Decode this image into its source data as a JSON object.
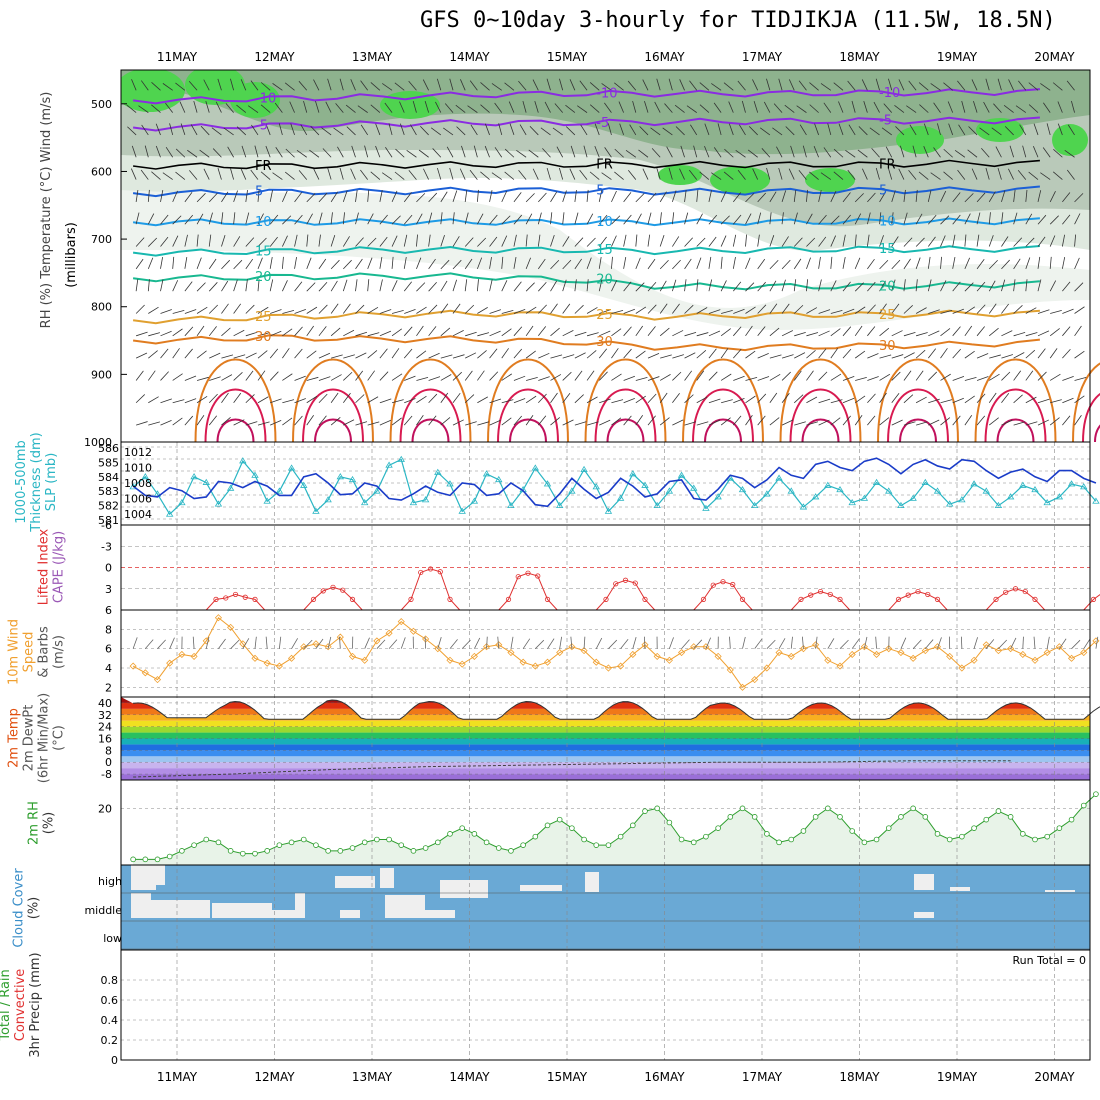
{
  "title": "GFS 0~10day 3-hourly for TIDJIKJA (11.5W, 18.5N)",
  "dates": [
    "11MAY",
    "12MAY",
    "13MAY",
    "14MAY",
    "15MAY",
    "16MAY",
    "17MAY",
    "18MAY",
    "19MAY",
    "20MAY"
  ],
  "colors": {
    "panel_bg": "#ffffff",
    "cloud_blue": "#6aa9d5",
    "rh_fill": "#e8f3e8",
    "rh_line": "#2e9e2e",
    "thick_line": "#2ab6c4",
    "slp_line": "#1a3cc8",
    "li_line": "#e03030",
    "wind_line": "#f0a030",
    "barb": "#666666"
  },
  "chart_data": [
    {
      "panel": "profile",
      "type": "heatmap",
      "ylabel_parts": [
        "RH (%)",
        "Temperature (°C)",
        "Wind (m/s)",
        "(millibars)"
      ],
      "y_ticks": [
        "500",
        "600",
        "700",
        "800",
        "900",
        "1000"
      ],
      "ylim": [
        1000,
        450
      ],
      "isotherms": [
        {
          "label": "-10",
          "pressure": [
            495,
            492,
            490,
            487,
            485,
            485,
            485,
            484,
            483,
            482
          ]
        },
        {
          "label": "-5",
          "pressure": [
            535,
            532,
            530,
            528,
            528,
            527,
            526,
            525,
            525,
            524
          ]
        },
        {
          "label": "FR",
          "pressure": [
            592,
            592,
            591,
            590,
            590,
            590,
            590,
            590,
            588,
            588
          ]
        },
        {
          "label": "5",
          "pressure": [
            632,
            630,
            630,
            628,
            628,
            630,
            630,
            628,
            628,
            626
          ]
        },
        {
          "label": "10",
          "pressure": [
            675,
            675,
            675,
            675,
            675,
            675,
            675,
            674,
            674,
            673
          ]
        },
        {
          "label": "15",
          "pressure": [
            720,
            718,
            716,
            716,
            716,
            718,
            716,
            715,
            715,
            714
          ]
        },
        {
          "label": "20",
          "pressure": [
            758,
            756,
            755,
            755,
            760,
            770,
            770,
            770,
            768,
            766
          ]
        },
        {
          "label": "25",
          "pressure": [
            820,
            815,
            812,
            810,
            812,
            815,
            812,
            812,
            810,
            810
          ]
        },
        {
          "label": "30",
          "pressure": [
            850,
            845,
            848,
            848,
            852,
            860,
            860,
            858,
            856,
            852
          ]
        }
      ]
    },
    {
      "panel": "thickness_slp",
      "type": "line",
      "ylabel_parts": [
        "1000-500mb",
        "Thickness (dm)",
        "SLP (mb)"
      ],
      "left_ticks": [
        "586",
        "585",
        "584",
        "583",
        "582",
        "581"
      ],
      "right_ticks": [
        "1012",
        "1010",
        "1008",
        "1006",
        "1004"
      ],
      "series": [
        {
          "name": "Thickness",
          "values": [
            583.3,
            584.0,
            582.8,
            581.4,
            582.2,
            584.0,
            583.6,
            582.1,
            583.2,
            585.1,
            584.1,
            582.3,
            583.0,
            584.6,
            583.4,
            581.6,
            582.4,
            584.0,
            583.8,
            582.2,
            583.0,
            584.8,
            585.2,
            582.2,
            582.4,
            584.3,
            583.5,
            581.6,
            582.3,
            584.2,
            583.8,
            582.0,
            583.1,
            584.6,
            583.5,
            582.0,
            583.0,
            584.5,
            583.3,
            581.6,
            582.5,
            584.2,
            583.4,
            582.0,
            583.0,
            584.1,
            583.2,
            581.8,
            582.6,
            583.9,
            583.1,
            582.0,
            582.8,
            583.9,
            583.0,
            581.9,
            582.6,
            583.4,
            583.1,
            582.2,
            582.5,
            583.6,
            583.0,
            582.0,
            582.5,
            583.6,
            583.0,
            582.1,
            582.4,
            583.5,
            583.0,
            582.0,
            582.6,
            583.4,
            583.1,
            582.2,
            582.6,
            583.5,
            583.3,
            582.3
          ],
          "unit": "dm"
        },
        {
          "name": "SLP",
          "values": [
            1007.6,
            1006.4,
            1006.2,
            1007.4,
            1007.0,
            1006.0,
            1006.2,
            1008.2,
            1008.0,
            1007.4,
            1008.2,
            1007.6,
            1006.4,
            1006.4,
            1008.8,
            1009.2,
            1008.0,
            1006.5,
            1006.6,
            1008.0,
            1007.6,
            1006.0,
            1005.8,
            1006.6,
            1007.6,
            1006.8,
            1006.4,
            1008.0,
            1007.8,
            1006.4,
            1006.6,
            1008.0,
            1007.0,
            1005.2,
            1005.0,
            1006.6,
            1008.6,
            1007.2,
            1006.0,
            1006.8,
            1008.6,
            1007.6,
            1006.2,
            1006.6,
            1008.2,
            1008.4,
            1006.0,
            1005.8,
            1007.2,
            1009.0,
            1008.6,
            1007.4,
            1008.4,
            1010.0,
            1009.0,
            1008.6,
            1010.4,
            1010.8,
            1010.0,
            1009.6,
            1010.8,
            1011.2,
            1010.4,
            1009.2,
            1010.4,
            1011.0,
            1010.2,
            1009.8,
            1011.0,
            1010.8,
            1009.6,
            1008.6,
            1009.4,
            1009.8,
            1008.8,
            1008.2,
            1009.6,
            1009.6,
            1008.6,
            1008.0
          ],
          "unit": "mb"
        }
      ]
    },
    {
      "panel": "stability",
      "type": "line",
      "ylabel_parts": [
        "Lifted Index",
        "CAPE (J/kg)"
      ],
      "y_ticks": [
        "-6",
        "-3",
        "0",
        "3",
        "6"
      ],
      "ylim": [
        -6,
        6
      ],
      "series": [
        {
          "name": "Lifted Index",
          "days": [
            {
              "peak": 3.8
            },
            {
              "peak": 2.8
            },
            {
              "peak": 0.2
            },
            {
              "peak": 0.8
            },
            {
              "peak": 1.8
            },
            {
              "peak": 2.0
            },
            {
              "peak": 3.4
            },
            {
              "peak": 3.4
            },
            {
              "peak": 3.0
            },
            {
              "peak": 3.0
            }
          ]
        }
      ]
    },
    {
      "panel": "wind10m",
      "type": "line",
      "ylabel_parts": [
        "10m Wind",
        "Speed",
        "& Barbs",
        "(m/s)"
      ],
      "y_ticks": [
        "2",
        "4",
        "6",
        "8"
      ],
      "ylim": [
        1,
        10
      ],
      "series": [
        {
          "name": "10m Wind Speed",
          "values": [
            4.2,
            3.5,
            2.8,
            4.5,
            5.4,
            5.2,
            6.8,
            9.2,
            8.2,
            6.5,
            5.0,
            4.5,
            4.2,
            5.0,
            6.2,
            6.5,
            6.2,
            7.2,
            5.2,
            4.8,
            6.8,
            7.6,
            8.8,
            7.8,
            7.0,
            6.0,
            4.8,
            4.4,
            5.2,
            6.2,
            6.4,
            5.6,
            4.6,
            4.2,
            4.6,
            5.6,
            6.2,
            5.8,
            4.6,
            4.0,
            4.2,
            5.4,
            6.4,
            5.2,
            4.8,
            5.6,
            6.2,
            6.2,
            5.2,
            3.8,
            2.0,
            2.8,
            4.0,
            5.6,
            5.2,
            6.0,
            6.4,
            4.8,
            4.2,
            5.4,
            6.2,
            5.4,
            6.0,
            5.6,
            5.0,
            5.8,
            6.2,
            5.2,
            4.0,
            4.8,
            6.4,
            5.8,
            6.0,
            5.4,
            4.8,
            5.6,
            6.2,
            5.0,
            5.6,
            6.8
          ]
        }
      ]
    },
    {
      "panel": "temp2m",
      "type": "area",
      "ylabel_parts": [
        "2m Temp",
        "2m DewPt",
        "(6hr Min/Max)",
        "(°C)"
      ],
      "y_ticks": [
        "-8",
        "0",
        "8",
        "16",
        "24",
        "32",
        "40"
      ],
      "ylim": [
        -12,
        44
      ],
      "series": [
        {
          "name": "2m Temp",
          "daily_max": [
            40,
            41,
            42,
            41,
            41,
            41,
            40,
            40,
            40,
            40
          ],
          "daily_min": [
            30,
            29,
            29,
            29,
            29,
            29,
            29,
            29,
            29,
            29
          ]
        },
        {
          "name": "2m DewPt",
          "values": [
            -10,
            -8,
            -5,
            -3,
            -2,
            -1,
            0,
            0,
            1,
            1
          ]
        }
      ]
    },
    {
      "panel": "rh2m",
      "type": "line",
      "ylabel_parts": [
        "2m RH",
        "(%)"
      ],
      "y_ticks": [
        "20"
      ],
      "ylim": [
        0,
        30
      ],
      "series": [
        {
          "name": "2m RH",
          "values": [
            2,
            2,
            2,
            3,
            5,
            7,
            9,
            8,
            5,
            4,
            4,
            5,
            7,
            8,
            9,
            7,
            5,
            5,
            6,
            8,
            9,
            9,
            7,
            5,
            6,
            8,
            11,
            13,
            11,
            8,
            6,
            5,
            7,
            10,
            14,
            16,
            13,
            9,
            7,
            7,
            10,
            14,
            19,
            20,
            15,
            9,
            8,
            10,
            13,
            17,
            20,
            17,
            11,
            8,
            9,
            12,
            17,
            20,
            17,
            12,
            8,
            9,
            13,
            17,
            20,
            17,
            11,
            9,
            10,
            13,
            16,
            19,
            17,
            11,
            9,
            10,
            13,
            16,
            21,
            25
          ]
        }
      ]
    },
    {
      "panel": "cloud",
      "type": "heatmap",
      "ylabel_parts": [
        "Cloud Cover",
        "(%)"
      ],
      "rows": [
        "high",
        "middle",
        "low"
      ]
    },
    {
      "panel": "precip",
      "type": "bar",
      "ylabel_parts": [
        "Total / Rain",
        "Convective",
        "3hr Precip (mm)"
      ],
      "y_ticks": [
        "0",
        "0.2",
        "0.4",
        "0.6",
        "0.8"
      ],
      "ylim": [
        0,
        1
      ],
      "run_total": "Run Total = 0",
      "values": []
    }
  ]
}
